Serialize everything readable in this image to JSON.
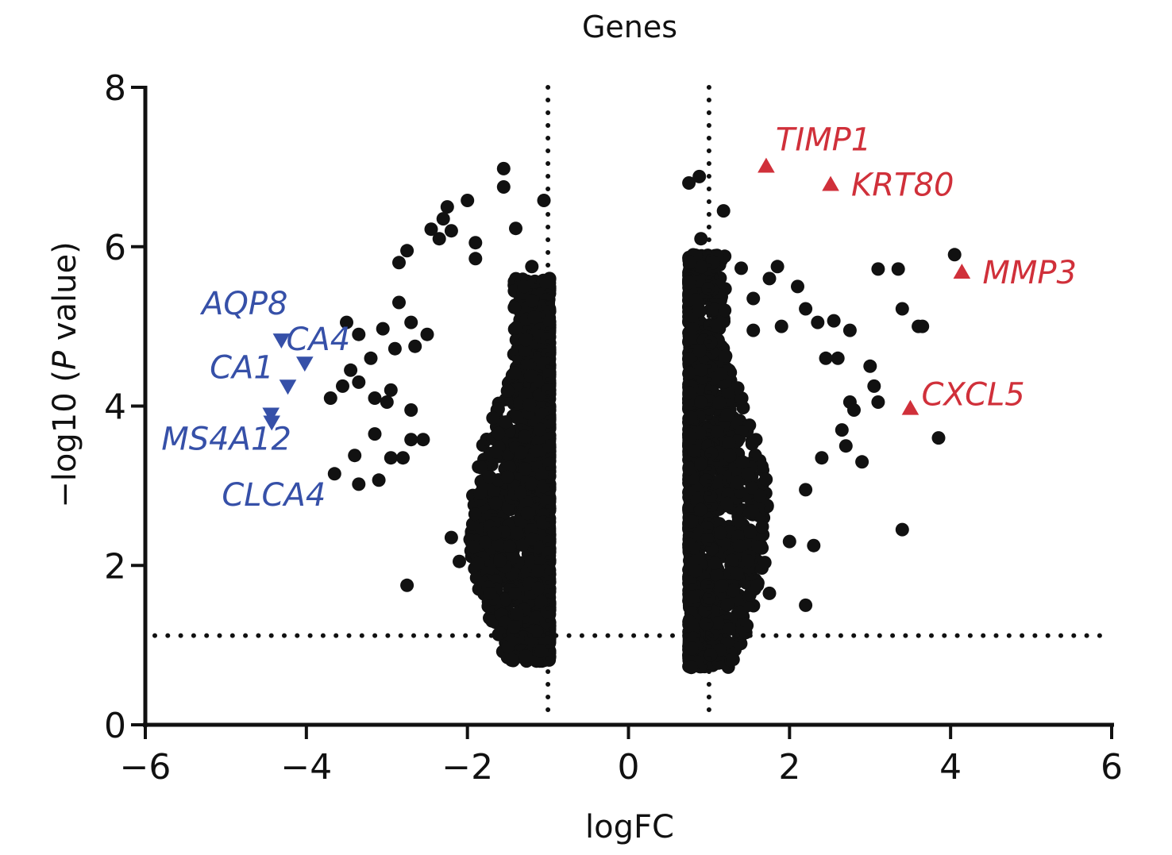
{
  "chart_data": {
    "type": "scatter",
    "title": "Genes",
    "xlabel": "logFC",
    "ylabel_parts": [
      "−log10 (",
      "P",
      " value)"
    ],
    "xlim": [
      -6,
      6
    ],
    "ylim": [
      0,
      8
    ],
    "xticks": [
      -6,
      -4,
      -2,
      0,
      2,
      4,
      6
    ],
    "xtick_labels": [
      "−6",
      "−4",
      "−2",
      "0",
      "2",
      "4",
      "6"
    ],
    "yticks": [
      0,
      2,
      4,
      6,
      8
    ],
    "ytick_labels": [
      "0",
      "2",
      "4",
      "6",
      "8"
    ],
    "grid": false,
    "thresholds": {
      "logfc": [
        -1,
        1
      ],
      "neg_log10_p": 1.12
    },
    "colors": {
      "points": "#111111",
      "up": "#d0303a",
      "down": "#3650a8",
      "axis": "#111111"
    },
    "highlighted_up": [
      {
        "gene": "TIMP1",
        "x": 1.71,
        "y": 7.01,
        "label_pos": "above-right"
      },
      {
        "gene": "KRT80",
        "x": 2.51,
        "y": 6.78,
        "label_pos": "right"
      },
      {
        "gene": "MMP3",
        "x": 4.14,
        "y": 5.68,
        "label_pos": "right"
      },
      {
        "gene": "CXCL5",
        "x": 3.5,
        "y": 3.97,
        "label_pos": "above-right"
      }
    ],
    "highlighted_down": [
      {
        "gene": "AQP8",
        "x": -4.31,
        "y": 4.83
      },
      {
        "gene": "CA4",
        "x": -4.02,
        "y": 4.54
      },
      {
        "gene": "CA1",
        "x": -4.23,
        "y": 4.25
      },
      {
        "gene": "MS4A12",
        "x": -4.44,
        "y": 3.9
      },
      {
        "gene": "CLCA4",
        "x": -4.43,
        "y": 3.8
      }
    ],
    "down_labels": [
      {
        "text": "AQP8",
        "x": -5.3,
        "y": 5.15
      },
      {
        "text": "CA4",
        "x": -4.25,
        "y": 4.7
      },
      {
        "text": "CA1",
        "x": -5.2,
        "y": 4.35
      },
      {
        "text": "MS4A12",
        "x": -5.8,
        "y": 3.45
      },
      {
        "text": "CLCA4",
        "x": -5.05,
        "y": 2.75
      }
    ],
    "outlier_points": [
      [
        -1.55,
        6.98
      ],
      [
        -1.55,
        6.75
      ],
      [
        -2.0,
        6.58
      ],
      [
        -2.25,
        6.5
      ],
      [
        -1.05,
        6.58
      ],
      [
        -2.3,
        6.35
      ],
      [
        -2.45,
        6.22
      ],
      [
        -2.2,
        6.2
      ],
      [
        -1.4,
        6.23
      ],
      [
        -2.35,
        6.1
      ],
      [
        -1.9,
        6.05
      ],
      [
        -2.75,
        5.95
      ],
      [
        -1.9,
        5.85
      ],
      [
        -2.85,
        5.8
      ],
      [
        -1.2,
        5.75
      ],
      [
        -1.3,
        5.5
      ],
      [
        -2.85,
        5.3
      ],
      [
        -2.7,
        5.05
      ],
      [
        -3.5,
        5.05
      ],
      [
        -3.35,
        4.9
      ],
      [
        -3.05,
        4.97
      ],
      [
        -2.5,
        4.9
      ],
      [
        -2.65,
        4.75
      ],
      [
        -2.9,
        4.72
      ],
      [
        -3.45,
        4.45
      ],
      [
        -3.2,
        4.6
      ],
      [
        -3.35,
        4.3
      ],
      [
        -2.95,
        4.2
      ],
      [
        -3.15,
        4.1
      ],
      [
        -3.55,
        4.25
      ],
      [
        -3.7,
        4.1
      ],
      [
        -3.0,
        4.05
      ],
      [
        -2.7,
        3.95
      ],
      [
        -3.15,
        3.65
      ],
      [
        -2.55,
        3.58
      ],
      [
        -2.7,
        3.58
      ],
      [
        -2.95,
        3.35
      ],
      [
        -2.8,
        3.35
      ],
      [
        -3.4,
        3.38
      ],
      [
        -3.65,
        3.15
      ],
      [
        -3.35,
        3.02
      ],
      [
        -3.1,
        3.07
      ],
      [
        -2.75,
        1.75
      ],
      [
        -2.1,
        2.05
      ],
      [
        -2.2,
        2.35
      ],
      [
        -1.6,
        1.15
      ],
      [
        0.75,
        6.8
      ],
      [
        0.88,
        6.88
      ],
      [
        1.18,
        6.45
      ],
      [
        0.9,
        6.1
      ],
      [
        1.05,
        5.8
      ],
      [
        0.75,
        5.55
      ],
      [
        1.4,
        5.73
      ],
      [
        1.85,
        5.75
      ],
      [
        1.75,
        5.6
      ],
      [
        2.1,
        5.5
      ],
      [
        1.55,
        5.35
      ],
      [
        2.2,
        5.22
      ],
      [
        2.55,
        5.07
      ],
      [
        2.35,
        5.05
      ],
      [
        1.9,
        5.0
      ],
      [
        1.55,
        4.95
      ],
      [
        2.75,
        4.95
      ],
      [
        2.45,
        4.6
      ],
      [
        2.6,
        4.6
      ],
      [
        3.0,
        4.5
      ],
      [
        3.05,
        4.25
      ],
      [
        3.1,
        4.05
      ],
      [
        2.75,
        4.05
      ],
      [
        2.9,
        3.3
      ],
      [
        3.4,
        5.22
      ],
      [
        3.6,
        5.0
      ],
      [
        3.65,
        5.0
      ],
      [
        3.35,
        5.72
      ],
      [
        3.1,
        5.72
      ],
      [
        4.05,
        5.9
      ],
      [
        3.85,
        3.6
      ],
      [
        3.4,
        2.45
      ],
      [
        2.3,
        2.25
      ],
      [
        2.2,
        1.5
      ],
      [
        1.75,
        1.65
      ],
      [
        1.6,
        1.75
      ],
      [
        1.35,
        1.9
      ],
      [
        1.25,
        1.2
      ],
      [
        1.3,
        0.82
      ],
      [
        0.78,
        0.72
      ],
      [
        2.7,
        3.5
      ],
      [
        2.65,
        3.7
      ],
      [
        2.8,
        3.95
      ],
      [
        2.4,
        3.35
      ],
      [
        2.2,
        2.95
      ],
      [
        2.0,
        2.3
      ]
    ],
    "dense_clusters_note": "Approximately 2000 significant genes concentrated near |logFC| 1-1.8 with -log10 P 0.8-5.5 (rendered procedurally)",
    "dense_clusters": [
      {
        "side": "left",
        "x_edge": -0.98,
        "x_spread": 1.0,
        "y_min": 0.8,
        "y_max": 5.6,
        "count": 1300
      },
      {
        "side": "right",
        "x_edge": 0.75,
        "x_spread": 1.0,
        "y_min": 0.72,
        "y_max": 5.9,
        "count": 1300
      }
    ]
  }
}
